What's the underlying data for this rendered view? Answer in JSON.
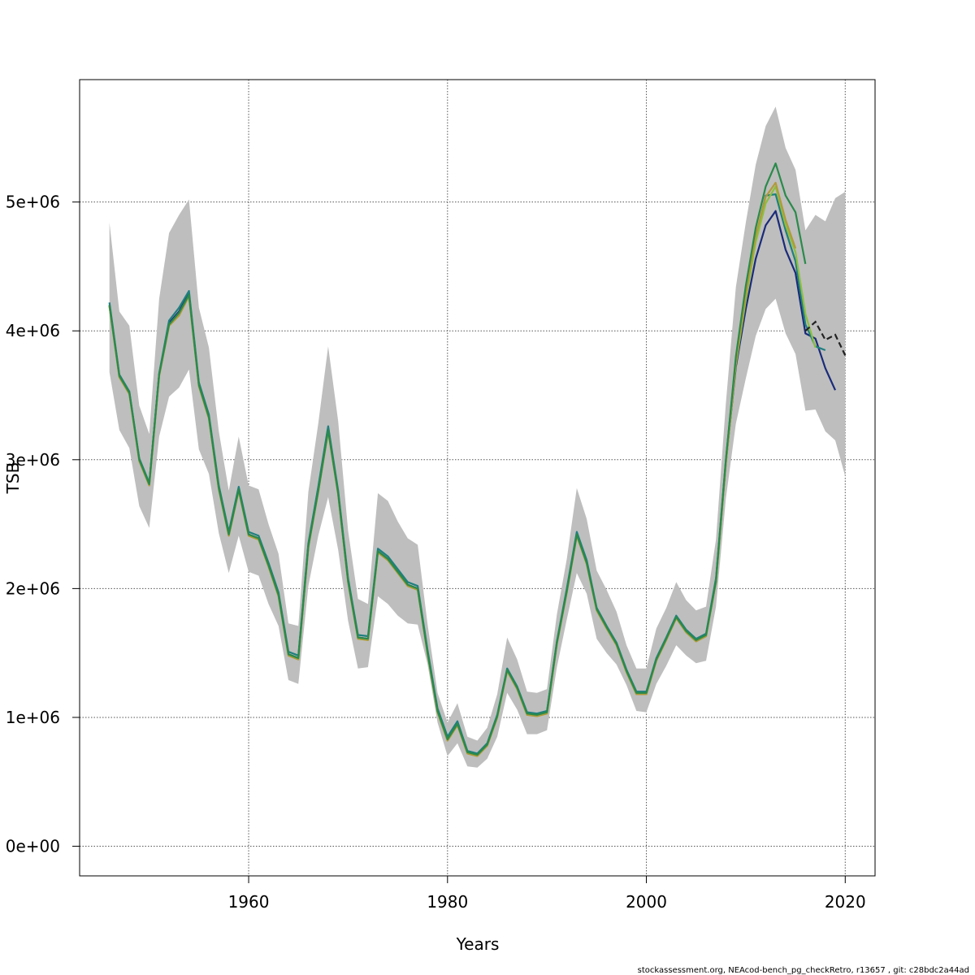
{
  "chart_data": {
    "type": "line",
    "title": "",
    "xlabel": "Years",
    "ylabel": "TSB",
    "xlim": [
      1943,
      2023
    ],
    "ylim": [
      -230000,
      5950000
    ],
    "x_ticks": [
      1960,
      1980,
      2000,
      2020
    ],
    "y_ticks": [
      0,
      1000000,
      2000000,
      3000000,
      4000000,
      5000000
    ],
    "y_tick_labels": [
      "0e+00",
      "1e+06",
      "2e+06",
      "3e+06",
      "4e+06",
      "5e+06"
    ],
    "grid": true,
    "band_color": "#bebebe",
    "band": {
      "years": [
        1946,
        1947,
        1948,
        1949,
        1950,
        1951,
        1952,
        1953,
        1954,
        1955,
        1956,
        1957,
        1958,
        1959,
        1960,
        1961,
        1962,
        1963,
        1964,
        1965,
        1966,
        1967,
        1968,
        1969,
        1970,
        1971,
        1972,
        1973,
        1974,
        1975,
        1976,
        1977,
        1978,
        1979,
        1980,
        1981,
        1982,
        1983,
        1984,
        1985,
        1986,
        1987,
        1988,
        1989,
        1990,
        1991,
        1992,
        1993,
        1994,
        1995,
        1996,
        1997,
        1998,
        1999,
        2000,
        2001,
        2002,
        2003,
        2004,
        2005,
        2006,
        2007,
        2008,
        2009,
        2010,
        2011,
        2012,
        2013,
        2014,
        2015,
        2016,
        2017,
        2018,
        2019,
        2020
      ],
      "upper": [
        4840000,
        4150000,
        4040000,
        3420000,
        3200000,
        4250000,
        4760000,
        4900000,
        5020000,
        4180000,
        3870000,
        3220000,
        2760000,
        3180000,
        2800000,
        2770000,
        2500000,
        2270000,
        1730000,
        1710000,
        2750000,
        3280000,
        3880000,
        3300000,
        2450000,
        1920000,
        1880000,
        2740000,
        2680000,
        2520000,
        2390000,
        2340000,
        1720000,
        1190000,
        960000,
        1110000,
        850000,
        820000,
        920000,
        1180000,
        1620000,
        1450000,
        1200000,
        1190000,
        1220000,
        1800000,
        2230000,
        2780000,
        2540000,
        2140000,
        1990000,
        1820000,
        1560000,
        1380000,
        1380000,
        1690000,
        1850000,
        2050000,
        1910000,
        1830000,
        1860000,
        2380000,
        3440000,
        4340000,
        4840000,
        5290000,
        5590000,
        5740000,
        5420000,
        5250000,
        4780000,
        4900000,
        4850000,
        5030000,
        5080000
      ],
      "lower": [
        3680000,
        3230000,
        3090000,
        2640000,
        2470000,
        3180000,
        3490000,
        3560000,
        3700000,
        3080000,
        2890000,
        2430000,
        2120000,
        2410000,
        2130000,
        2100000,
        1880000,
        1710000,
        1290000,
        1260000,
        2020000,
        2410000,
        2710000,
        2300000,
        1750000,
        1380000,
        1390000,
        1940000,
        1880000,
        1790000,
        1730000,
        1720000,
        1410000,
        960000,
        700000,
        800000,
        620000,
        610000,
        680000,
        850000,
        1190000,
        1060000,
        870000,
        870000,
        900000,
        1390000,
        1760000,
        2120000,
        1960000,
        1610000,
        1500000,
        1410000,
        1250000,
        1050000,
        1040000,
        1260000,
        1400000,
        1560000,
        1480000,
        1420000,
        1440000,
        1860000,
        2700000,
        3280000,
        3630000,
        3960000,
        4170000,
        4250000,
        3980000,
        3820000,
        3380000,
        3390000,
        3220000,
        3150000,
        2870000
      ]
    },
    "series": [
      {
        "color": "#1a2b7a",
        "values": [
          4200000,
          3650000,
          3520000,
          3000000,
          2810000,
          3660000,
          4060000,
          4150000,
          4290000,
          3580000,
          3330000,
          2780000,
          2420000,
          2770000,
          2420000,
          2390000,
          2180000,
          1950000,
          1490000,
          1460000,
          2330000,
          2760000,
          3250000,
          2740000,
          2060000,
          1620000,
          1610000,
          2290000,
          2230000,
          2130000,
          2030000,
          2000000,
          1500000,
          1050000,
          830000,
          950000,
          730000,
          710000,
          790000,
          1010000,
          1370000,
          1230000,
          1030000,
          1020000,
          1040000,
          1580000,
          1980000,
          2420000,
          2200000,
          1840000,
          1700000,
          1570000,
          1360000,
          1190000,
          1190000,
          1450000,
          1610000,
          1780000,
          1670000,
          1600000,
          1640000,
          2060000,
          2980000,
          3720000,
          4170000,
          4560000,
          4820000,
          4930000,
          4630000,
          4450000,
          3980000,
          3940000,
          3710000,
          3540000
        ]
      },
      {
        "color": "#1f7f7f",
        "values": [
          4220000,
          3660000,
          3530000,
          3010000,
          2820000,
          3670000,
          4080000,
          4180000,
          4310000,
          3600000,
          3350000,
          2800000,
          2440000,
          2790000,
          2440000,
          2410000,
          2200000,
          1970000,
          1510000,
          1480000,
          2350000,
          2790000,
          3260000,
          2760000,
          2080000,
          1640000,
          1630000,
          2310000,
          2250000,
          2150000,
          2050000,
          2020000,
          1520000,
          1070000,
          850000,
          970000,
          740000,
          720000,
          800000,
          1020000,
          1380000,
          1240000,
          1040000,
          1030000,
          1050000,
          1590000,
          2000000,
          2440000,
          2220000,
          1850000,
          1710000,
          1580000,
          1370000,
          1200000,
          1200000,
          1460000,
          1620000,
          1790000,
          1680000,
          1610000,
          1650000,
          2080000,
          3000000,
          3780000,
          4300000,
          4720000,
          5050000,
          5060000,
          4780000,
          4540000,
          4050000,
          3880000,
          3850000
        ]
      },
      {
        "color": "#8cbf3f",
        "values": [
          4190000,
          3640000,
          3510000,
          2990000,
          2800000,
          3650000,
          4040000,
          4120000,
          4270000,
          3570000,
          3320000,
          2770000,
          2410000,
          2760000,
          2410000,
          2380000,
          2170000,
          1940000,
          1480000,
          1450000,
          2320000,
          2750000,
          3220000,
          2730000,
          2050000,
          1610000,
          1600000,
          2280000,
          2220000,
          2120000,
          2020000,
          1990000,
          1490000,
          1040000,
          820000,
          940000,
          720000,
          700000,
          780000,
          1000000,
          1360000,
          1220000,
          1020000,
          1010000,
          1030000,
          1570000,
          1970000,
          2410000,
          2190000,
          1830000,
          1690000,
          1560000,
          1350000,
          1180000,
          1180000,
          1440000,
          1600000,
          1770000,
          1660000,
          1590000,
          1630000,
          2050000,
          2970000,
          3740000,
          4240000,
          4690000,
          4990000,
          5120000,
          4820000,
          4610000,
          4130000,
          3870000
        ]
      },
      {
        "color": "#b09a3a",
        "values": [
          4190000,
          3640000,
          3510000,
          2990000,
          2800000,
          3650000,
          4040000,
          4120000,
          4270000,
          3570000,
          3320000,
          2770000,
          2410000,
          2760000,
          2410000,
          2380000,
          2170000,
          1940000,
          1480000,
          1450000,
          2320000,
          2750000,
          3220000,
          2730000,
          2050000,
          1610000,
          1600000,
          2280000,
          2220000,
          2120000,
          2020000,
          1990000,
          1490000,
          1040000,
          820000,
          940000,
          720000,
          700000,
          780000,
          1000000,
          1360000,
          1220000,
          1020000,
          1010000,
          1030000,
          1570000,
          1970000,
          2410000,
          2190000,
          1830000,
          1690000,
          1560000,
          1350000,
          1180000,
          1180000,
          1440000,
          1600000,
          1770000,
          1660000,
          1590000,
          1630000,
          2050000,
          2980000,
          3760000,
          4280000,
          4740000,
          5040000,
          5150000,
          4860000,
          4640000
        ]
      },
      {
        "color": "#2a8a4a",
        "values": [
          4200000,
          3650000,
          3520000,
          3000000,
          2810000,
          3660000,
          4050000,
          4140000,
          4280000,
          3580000,
          3330000,
          2780000,
          2420000,
          2770000,
          2420000,
          2390000,
          2180000,
          1950000,
          1490000,
          1460000,
          2330000,
          2760000,
          3230000,
          2740000,
          2060000,
          1620000,
          1610000,
          2290000,
          2230000,
          2130000,
          2030000,
          2000000,
          1500000,
          1050000,
          830000,
          950000,
          730000,
          710000,
          790000,
          1010000,
          1370000,
          1230000,
          1030000,
          1020000,
          1040000,
          1580000,
          1980000,
          2420000,
          2200000,
          1840000,
          1700000,
          1570000,
          1360000,
          1190000,
          1190000,
          1450000,
          1610000,
          1780000,
          1670000,
          1600000,
          1640000,
          2060000,
          3000000,
          3800000,
          4350000,
          4800000,
          5120000,
          5300000,
          5050000,
          4920000,
          4520000
        ]
      }
    ],
    "dashed_series": {
      "color": "#222222",
      "years": [
        2016,
        2017,
        2018,
        2019,
        2020
      ],
      "values": [
        4000000,
        4070000,
        3930000,
        3970000,
        3810000
      ]
    }
  },
  "footer": {
    "credit": "stockassessment.org, NEAcod-bench_pg_checkRetro, r13657 , git: c28bdc2a44ad"
  }
}
